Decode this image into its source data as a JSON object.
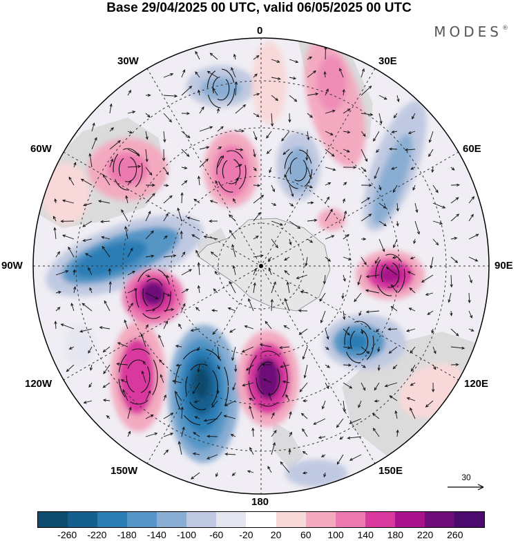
{
  "title": "Base 29/04/2025 00 UTC, valid 06/05/2025 00 UTC",
  "brand": "MODES",
  "brand_mark": "®",
  "longitude_labels": {
    "top": "0",
    "bottom": "180",
    "left": "90W",
    "right": "90E",
    "upper_left_30": "30W",
    "upper_left_60": "60W",
    "upper_right_30": "30E",
    "upper_right_60": "60E",
    "lower_left_120": "120W",
    "lower_left_150": "150W",
    "lower_right_120": "120E",
    "lower_right_150": "150E"
  },
  "wind_reference": {
    "value": "30"
  },
  "colorbar": {
    "colors": [
      "#0d4a6b",
      "#155f8f",
      "#2a7db5",
      "#5596c6",
      "#8aaed3",
      "#bfc9e1",
      "#e5e6f0",
      "#ffffff",
      "#f8d8d8",
      "#f3aac0",
      "#ec7ab0",
      "#d9389f",
      "#a8128a",
      "#6e0c7a",
      "#4a0a6e"
    ],
    "tick_labels": [
      "-260",
      "-220",
      "-180",
      "-140",
      "-100",
      "-60",
      "-20",
      "20",
      "60",
      "100",
      "140",
      "180",
      "220",
      "260"
    ]
  },
  "colors": {
    "land": "#d8d8d8",
    "antarctica": "#e6e6e6",
    "background": "#ffffff"
  }
}
